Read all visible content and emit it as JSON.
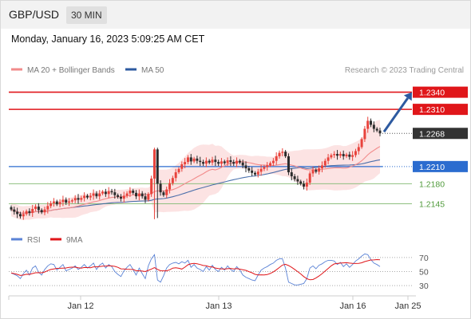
{
  "header": {
    "pair": "GBP/USD",
    "timeframe": "30 MIN"
  },
  "date_line": "Monday, January 16, 2023 5:09:25 AM CET",
  "legend": {
    "ma20": "MA 20 + Bollinger Bands",
    "ma50": "MA 50"
  },
  "credit": "Research © 2023 Trading Central",
  "rsi_legend": {
    "rsi": "RSI",
    "ma9": "9MA"
  },
  "colors": {
    "up": "#e8433c",
    "down": "#2b2b2b",
    "ma20": "#f28b8b",
    "ma50": "#2d5aa0",
    "band": "#fbd9d9",
    "resistance": "#e0161a",
    "support": "#2b6ccf",
    "target": "#4f9a3a",
    "current": "#333333",
    "arrow": "#2d5aa0",
    "rsi": "#5b83d6",
    "ma9": "#e0161a"
  },
  "chart_data": {
    "type": "candlestick",
    "ylim": [
      1.2115,
      1.2352
    ],
    "x_ticks": [
      "Jan 12",
      "Jan 13",
      "Jan 16",
      "Jan 25"
    ],
    "levels": [
      {
        "value": 1.234,
        "label": "1.2340",
        "kind": "resistance"
      },
      {
        "value": 1.231,
        "label": "1.2310",
        "kind": "resistance"
      },
      {
        "value": 1.2268,
        "label": "1.2268",
        "kind": "current"
      },
      {
        "value": 1.221,
        "label": "1.2210",
        "kind": "support"
      },
      {
        "value": 1.218,
        "label": "1.2180",
        "kind": "target"
      },
      {
        "value": 1.2145,
        "label": "1.2145",
        "kind": "target"
      }
    ],
    "rsi_levels": [
      70,
      50,
      30
    ],
    "closes": [
      1.2135,
      1.2131,
      1.2127,
      1.2123,
      1.2127,
      1.2132,
      1.2129,
      1.2136,
      1.214,
      1.2134,
      1.213,
      1.2135,
      1.2141,
      1.2146,
      1.2149,
      1.2144,
      1.2148,
      1.2152,
      1.2147,
      1.2149,
      1.2151,
      1.2155,
      1.2152,
      1.2155,
      1.2159,
      1.2156,
      1.2159,
      1.2163,
      1.2158,
      1.2163,
      1.2166,
      1.2162,
      1.2167,
      1.2165,
      1.216,
      1.2157,
      1.2154,
      1.2159,
      1.2163,
      1.2168,
      1.2164,
      1.2158,
      1.2163,
      1.2158,
      1.2152,
      1.2162,
      1.2189,
      1.224,
      1.218,
      1.2165,
      1.216,
      1.217,
      1.2181,
      1.219,
      1.22,
      1.2206,
      1.2214,
      1.2218,
      1.2226,
      1.2219,
      1.2224,
      1.222,
      1.2218,
      1.2215,
      1.222,
      1.2217,
      1.2222,
      1.2218,
      1.2215,
      1.2219,
      1.2216,
      1.2221,
      1.2218,
      1.2215,
      1.222,
      1.2217,
      1.2212,
      1.2207,
      1.2203,
      1.2199,
      1.2196,
      1.2201,
      1.2206,
      1.2209,
      1.2212,
      1.2216,
      1.222,
      1.2228,
      1.2234,
      1.2236,
      1.2228,
      1.22,
      1.2193,
      1.2188,
      1.2184,
      1.218,
      1.2175,
      1.2182,
      1.2198,
      1.2204,
      1.2201,
      1.2207,
      1.2212,
      1.222,
      1.2226,
      1.223,
      1.2232,
      1.2229,
      1.2232,
      1.2228,
      1.2231,
      1.2227,
      1.223,
      1.2237,
      1.2244,
      1.2258,
      1.2276,
      1.229,
      1.2283,
      1.2276,
      1.2273,
      1.2268
    ],
    "rsi": [
      48,
      46,
      44,
      40,
      47,
      52,
      45,
      55,
      58,
      49,
      45,
      53,
      58,
      61,
      60,
      52,
      56,
      60,
      51,
      53,
      55,
      58,
      53,
      56,
      60,
      55,
      58,
      62,
      53,
      59,
      62,
      55,
      60,
      57,
      50,
      46,
      43,
      51,
      56,
      60,
      53,
      45,
      55,
      47,
      40,
      58,
      68,
      74,
      38,
      35,
      44,
      55,
      60,
      62,
      63,
      61,
      64,
      62,
      66,
      56,
      60,
      55,
      53,
      50,
      57,
      52,
      59,
      53,
      50,
      56,
      52,
      58,
      53,
      50,
      57,
      52,
      45,
      42,
      40,
      38,
      37,
      45,
      52,
      55,
      57,
      60,
      62,
      66,
      68,
      68,
      55,
      35,
      33,
      31,
      31,
      32,
      33,
      40,
      55,
      58,
      54,
      59,
      61,
      64,
      66,
      66,
      65,
      60,
      63,
      57,
      61,
      56,
      60,
      65,
      68,
      72,
      75,
      74,
      67,
      62,
      60,
      57
    ]
  }
}
